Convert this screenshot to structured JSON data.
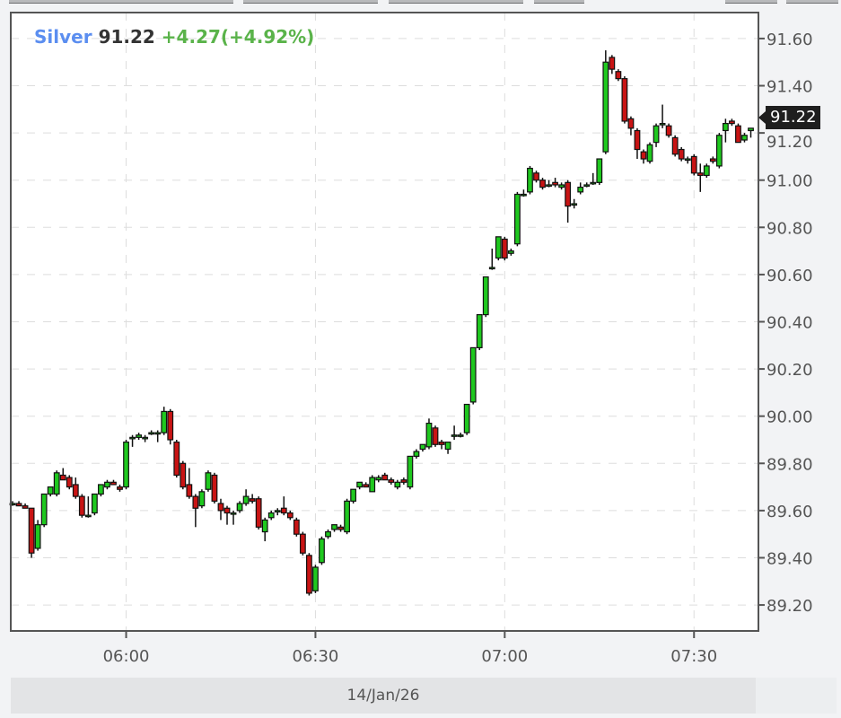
{
  "toolbar": {
    "buttons": [
      "",
      "",
      "",
      "",
      "",
      ""
    ]
  },
  "legend": {
    "symbol": "Silver",
    "price": "91.22",
    "change": "+4.27(+4.92%)"
  },
  "last_price_badge": "91.22",
  "date_label": "14/Jan/26",
  "colors": {
    "up": "#1fc81f",
    "down": "#c81414",
    "symbol": "#5b8ef0",
    "change": "#5ab34a",
    "grid": "#dddddd"
  },
  "chart_data": {
    "type": "candlestick",
    "title": "",
    "xlabel": "",
    "ylabel": "",
    "interval": "1 minute",
    "ylim": [
      89.09,
      91.71
    ],
    "y_axis_position": "right",
    "y_ticks": [
      "89.20",
      "89.40",
      "89.60",
      "89.80",
      "90.00",
      "90.20",
      "90.40",
      "90.60",
      "90.80",
      "91.00",
      "91.20",
      "91.40",
      "91.60"
    ],
    "x_ticks": [
      "06:00",
      "06:30",
      "07:00",
      "07:30"
    ],
    "grid": true,
    "columns": [
      "time",
      "open",
      "high",
      "low",
      "close"
    ],
    "candles": [
      [
        "05:42",
        89.63,
        89.64,
        89.62,
        89.63
      ],
      [
        "05:43",
        89.63,
        89.64,
        89.62,
        89.62
      ],
      [
        "05:44",
        89.62,
        89.63,
        89.61,
        89.61
      ],
      [
        "05:45",
        89.61,
        89.61,
        89.4,
        89.42
      ],
      [
        "05:46",
        89.44,
        89.56,
        89.43,
        89.54
      ],
      [
        "05:47",
        89.54,
        89.67,
        89.53,
        89.67
      ],
      [
        "05:48",
        89.67,
        89.7,
        89.66,
        89.7
      ],
      [
        "05:49",
        89.67,
        89.77,
        89.66,
        89.76
      ],
      [
        "05:50",
        89.75,
        89.78,
        89.73,
        89.73
      ],
      [
        "05:51",
        89.74,
        89.75,
        89.69,
        89.7
      ],
      [
        "05:52",
        89.71,
        89.74,
        89.65,
        89.66
      ],
      [
        "05:53",
        89.66,
        89.67,
        89.57,
        89.58
      ],
      [
        "05:54",
        89.58,
        89.66,
        89.57,
        89.58
      ],
      [
        "05:55",
        89.59,
        89.67,
        89.58,
        89.67
      ],
      [
        "05:56",
        89.67,
        89.71,
        89.66,
        89.71
      ],
      [
        "05:57",
        89.7,
        89.73,
        89.69,
        89.72
      ],
      [
        "05:58",
        89.72,
        89.73,
        89.71,
        89.71
      ],
      [
        "05:59",
        89.7,
        89.71,
        89.68,
        89.69
      ],
      [
        "06:00",
        89.7,
        89.9,
        89.69,
        89.89
      ],
      [
        "06:01",
        89.91,
        89.92,
        89.87,
        89.91
      ],
      [
        "06:02",
        89.91,
        89.93,
        89.9,
        89.92
      ],
      [
        "06:03",
        89.91,
        89.92,
        89.89,
        89.91
      ],
      [
        "06:04",
        89.93,
        89.94,
        89.92,
        89.93
      ],
      [
        "06:05",
        89.93,
        89.94,
        89.89,
        89.93
      ],
      [
        "06:06",
        89.93,
        90.04,
        89.92,
        90.02
      ],
      [
        "06:07",
        90.02,
        90.03,
        89.88,
        89.9
      ],
      [
        "06:08",
        89.89,
        89.9,
        89.74,
        89.75
      ],
      [
        "06:09",
        89.8,
        89.81,
        89.69,
        89.7
      ],
      [
        "06:10",
        89.71,
        89.78,
        89.65,
        89.66
      ],
      [
        "06:11",
        89.66,
        89.67,
        89.53,
        89.61
      ],
      [
        "06:12",
        89.62,
        89.69,
        89.61,
        89.68
      ],
      [
        "06:13",
        89.69,
        89.77,
        89.68,
        89.76
      ],
      [
        "06:14",
        89.75,
        89.76,
        89.63,
        89.64
      ],
      [
        "06:15",
        89.63,
        89.65,
        89.56,
        89.6
      ],
      [
        "06:16",
        89.61,
        89.62,
        89.54,
        89.59
      ],
      [
        "06:17",
        89.59,
        89.6,
        89.54,
        89.59
      ],
      [
        "06:18",
        89.6,
        89.64,
        89.59,
        89.63
      ],
      [
        "06:19",
        89.63,
        89.69,
        89.62,
        89.66
      ],
      [
        "06:20",
        89.65,
        89.67,
        89.63,
        89.64
      ],
      [
        "06:21",
        89.65,
        89.66,
        89.52,
        89.53
      ],
      [
        "06:22",
        89.51,
        89.57,
        89.47,
        89.56
      ],
      [
        "06:23",
        89.57,
        89.6,
        89.56,
        89.59
      ],
      [
        "06:24",
        89.6,
        89.61,
        89.58,
        89.6
      ],
      [
        "06:25",
        89.61,
        89.66,
        89.58,
        89.59
      ],
      [
        "06:26",
        89.59,
        89.6,
        89.56,
        89.57
      ],
      [
        "06:27",
        89.56,
        89.57,
        89.49,
        89.5
      ],
      [
        "06:28",
        89.5,
        89.51,
        89.41,
        89.42
      ],
      [
        "06:29",
        89.41,
        89.42,
        89.24,
        89.25
      ],
      [
        "06:30",
        89.26,
        89.37,
        89.25,
        89.36
      ],
      [
        "06:31",
        89.38,
        89.49,
        89.37,
        89.48
      ],
      [
        "06:32",
        89.49,
        89.52,
        89.48,
        89.51
      ],
      [
        "06:33",
        89.52,
        89.54,
        89.51,
        89.54
      ],
      [
        "06:34",
        89.53,
        89.54,
        89.51,
        89.52
      ],
      [
        "06:35",
        89.51,
        89.65,
        89.5,
        89.64
      ],
      [
        "06:36",
        89.64,
        89.69,
        89.63,
        89.69
      ],
      [
        "06:37",
        89.7,
        89.72,
        89.69,
        89.72
      ],
      [
        "06:38",
        89.71,
        89.72,
        89.7,
        89.7
      ],
      [
        "06:39",
        89.68,
        89.75,
        89.68,
        89.74
      ],
      [
        "06:40",
        89.73,
        89.75,
        89.72,
        89.74
      ],
      [
        "06:41",
        89.75,
        89.76,
        89.73,
        89.73
      ],
      [
        "06:42",
        89.73,
        89.74,
        89.71,
        89.72
      ],
      [
        "06:43",
        89.7,
        89.73,
        89.69,
        89.72
      ],
      [
        "06:44",
        89.73,
        89.74,
        89.71,
        89.72
      ],
      [
        "06:45",
        89.7,
        89.83,
        89.69,
        89.83
      ],
      [
        "06:46",
        89.83,
        89.86,
        89.82,
        89.85
      ],
      [
        "06:47",
        89.86,
        89.88,
        89.85,
        89.88
      ],
      [
        "06:48",
        89.87,
        89.99,
        89.86,
        89.97
      ],
      [
        "06:49",
        89.95,
        89.96,
        89.87,
        89.88
      ],
      [
        "06:50",
        89.89,
        89.9,
        89.86,
        89.88
      ],
      [
        "06:51",
        89.86,
        89.89,
        89.84,
        89.89
      ],
      [
        "06:52",
        89.92,
        89.96,
        89.9,
        89.92
      ],
      [
        "06:53",
        89.92,
        89.93,
        89.91,
        89.92
      ],
      [
        "06:54",
        89.93,
        90.05,
        89.92,
        90.05
      ],
      [
        "06:55",
        90.06,
        90.29,
        90.05,
        90.29
      ],
      [
        "06:56",
        90.29,
        90.43,
        90.28,
        90.43
      ],
      [
        "06:57",
        90.43,
        90.59,
        90.42,
        90.59
      ],
      [
        "06:58",
        90.63,
        90.71,
        90.62,
        90.63
      ],
      [
        "06:59",
        90.67,
        90.76,
        90.66,
        90.76
      ],
      [
        "07:00",
        90.75,
        90.76,
        90.66,
        90.67
      ],
      [
        "07:01",
        90.69,
        90.71,
        90.68,
        90.7
      ],
      [
        "07:02",
        90.73,
        90.95,
        90.72,
        90.94
      ],
      [
        "07:03",
        90.94,
        90.96,
        90.93,
        90.94
      ],
      [
        "07:04",
        90.95,
        91.06,
        90.94,
        91.05
      ],
      [
        "07:05",
        91.03,
        91.04,
        90.99,
        91.0
      ],
      [
        "07:06",
        91.0,
        91.01,
        90.96,
        90.97
      ],
      [
        "07:07",
        90.98,
        91.0,
        90.97,
        90.98
      ],
      [
        "07:08",
        90.99,
        91.01,
        90.97,
        90.98
      ],
      [
        "07:09",
        90.97,
        90.99,
        90.96,
        90.98
      ],
      [
        "07:10",
        90.99,
        91.0,
        90.82,
        90.89
      ],
      [
        "07:11",
        90.9,
        90.92,
        90.88,
        90.9
      ],
      [
        "07:12",
        90.95,
        90.99,
        90.94,
        90.97
      ],
      [
        "07:13",
        90.98,
        90.99,
        90.97,
        90.98
      ],
      [
        "07:14",
        90.99,
        91.03,
        90.98,
        90.99
      ],
      [
        "07:15",
        90.99,
        91.09,
        90.98,
        91.09
      ],
      [
        "07:16",
        91.12,
        91.55,
        91.11,
        91.5
      ],
      [
        "07:17",
        91.52,
        91.53,
        91.45,
        91.47
      ],
      [
        "07:18",
        91.46,
        91.47,
        91.42,
        91.43
      ],
      [
        "07:19",
        91.43,
        91.44,
        91.24,
        91.25
      ],
      [
        "07:20",
        91.26,
        91.27,
        91.19,
        91.22
      ],
      [
        "07:21",
        91.21,
        91.22,
        91.09,
        91.13
      ],
      [
        "07:22",
        91.12,
        91.13,
        91.07,
        91.09
      ],
      [
        "07:23",
        91.08,
        91.16,
        91.07,
        91.15
      ],
      [
        "07:24",
        91.16,
        91.24,
        91.14,
        91.23
      ],
      [
        "07:25",
        91.24,
        91.32,
        91.22,
        91.24
      ],
      [
        "07:26",
        91.23,
        91.24,
        91.18,
        91.19
      ],
      [
        "07:27",
        91.18,
        91.19,
        91.1,
        91.11
      ],
      [
        "07:28",
        91.13,
        91.14,
        91.08,
        91.09
      ],
      [
        "07:29",
        91.09,
        91.1,
        91.07,
        91.09
      ],
      [
        "07:30",
        91.1,
        91.11,
        91.02,
        91.03
      ],
      [
        "07:31",
        91.03,
        91.07,
        90.95,
        91.02
      ],
      [
        "07:32",
        91.02,
        91.07,
        91.01,
        91.06
      ],
      [
        "07:33",
        91.09,
        91.1,
        91.07,
        91.08
      ],
      [
        "07:34",
        91.06,
        91.2,
        91.05,
        91.19
      ],
      [
        "07:35",
        91.21,
        91.26,
        91.16,
        91.24
      ],
      [
        "07:36",
        91.25,
        91.26,
        91.23,
        91.24
      ],
      [
        "07:37",
        91.23,
        91.24,
        91.16,
        91.16
      ],
      [
        "07:38",
        91.17,
        91.2,
        91.16,
        91.19
      ],
      [
        "07:39",
        91.21,
        91.22,
        91.18,
        91.22
      ]
    ]
  }
}
